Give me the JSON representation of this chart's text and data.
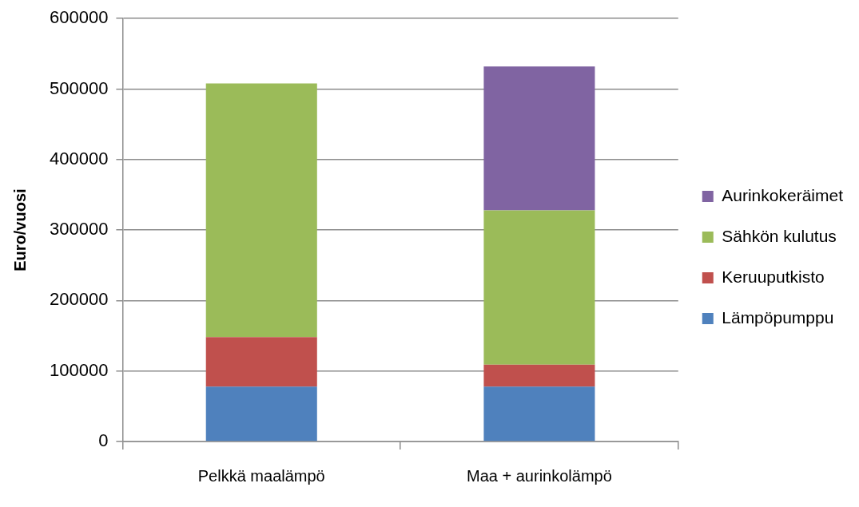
{
  "chart_data": {
    "type": "bar",
    "stacked": true,
    "ylabel": "Euro/vuosi",
    "categories": [
      "Pelkkä maalämpö",
      "Maa + aurinkolämpö"
    ],
    "series": [
      {
        "name": "Lämpöpumppu",
        "color": "#4f81bd",
        "values": [
          78000,
          78000
        ]
      },
      {
        "name": "Keruuputkisto",
        "color": "#c0504d",
        "values": [
          70000,
          31000
        ]
      },
      {
        "name": "Sähkön kulutus",
        "color": "#9bbb59",
        "values": [
          360000,
          219000
        ]
      },
      {
        "name": "Aurinkokeräimet",
        "color": "#8064a2",
        "values": [
          0,
          204000
        ]
      }
    ],
    "ylim": [
      0,
      600000
    ],
    "yticks": [
      0,
      100000,
      200000,
      300000,
      400000,
      500000,
      600000
    ],
    "grid": "y",
    "legend": "right"
  }
}
